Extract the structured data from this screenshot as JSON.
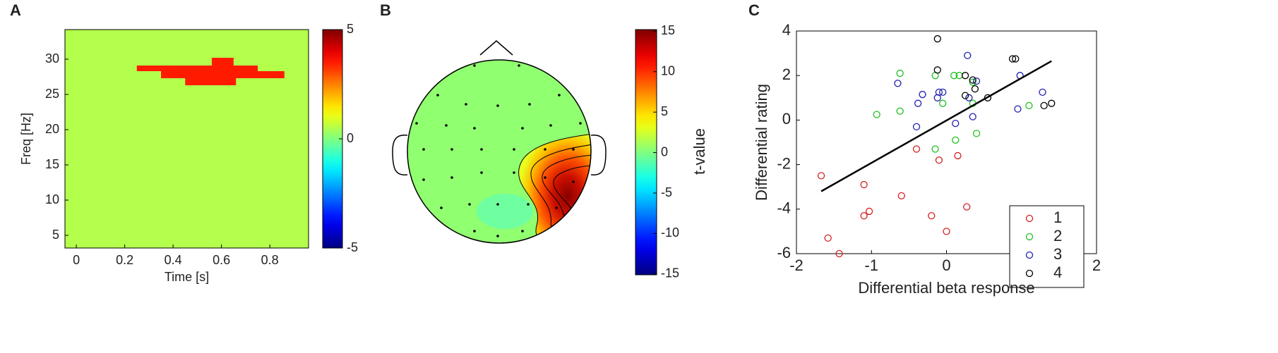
{
  "chart_data": [
    {
      "type": "heatmap",
      "panel": "A",
      "x_label": "Time [s]",
      "y_label": "Freq [Hz]",
      "xlim": [
        -0.047,
        0.96
      ],
      "xticks": [
        0,
        0.2,
        0.4,
        0.6,
        0.8
      ],
      "ylim": [
        3.2,
        34.2
      ],
      "yticks": [
        5,
        10,
        15,
        20,
        25,
        30
      ],
      "background_value": 0.5,
      "cells": [
        {
          "x": [
            0.56,
            0.65
          ],
          "y": [
            29.1,
            30.2
          ],
          "value": 3.5
        },
        {
          "x": [
            0.25,
            0.75
          ],
          "y": [
            28.3,
            29.1
          ],
          "value": 3.5
        },
        {
          "x": [
            0.35,
            0.86
          ],
          "y": [
            27.3,
            28.3
          ],
          "value": 3.5
        },
        {
          "x": [
            0.45,
            0.66
          ],
          "y": [
            26.3,
            27.3
          ],
          "value": 3.5
        }
      ],
      "colorbar": {
        "lim": [
          -5,
          5
        ],
        "ticks": [
          -5,
          0,
          5
        ]
      }
    },
    {
      "type": "topomap",
      "panel": "B",
      "colorbar_label": "t-value",
      "colorbar": {
        "lim": [
          -15.1,
          15.2
        ],
        "ticks": [
          -15,
          -10,
          -5,
          0,
          5,
          10,
          15
        ]
      }
    },
    {
      "type": "scatter",
      "panel": "C",
      "x_label": "Differential beta response",
      "y_label": "Differential rating",
      "xlim": [
        -2,
        2
      ],
      "xticks": [
        -2,
        -1,
        0,
        1,
        2
      ],
      "ylim": [
        -6,
        4
      ],
      "yticks": [
        -6,
        -4,
        -2,
        0,
        2,
        4
      ],
      "legend": "lower right",
      "series": [
        {
          "name": "1",
          "color": "#d62020",
          "x": [
            -1.67,
            -1.58,
            -1.43,
            -1.1,
            -1.1,
            -1.03,
            -0.6,
            -0.4,
            -0.2,
            -0.1,
            0.0,
            0.15,
            0.27
          ],
          "values": [
            -2.5,
            -5.3,
            -6.0,
            -2.9,
            -4.3,
            -4.1,
            -3.4,
            -1.3,
            -4.3,
            -1.8,
            -5.0,
            -1.6,
            -3.9
          ]
        },
        {
          "name": "2",
          "color": "#20c020",
          "x": [
            -0.93,
            -0.62,
            -0.62,
            -0.15,
            -0.15,
            -0.05,
            0.1,
            0.17,
            0.12,
            0.35,
            0.4,
            1.1,
            0.35
          ],
          "values": [
            0.25,
            2.1,
            0.4,
            2.0,
            -1.3,
            0.75,
            2.0,
            2.0,
            -0.9,
            0.75,
            -0.6,
            0.65,
            1.7
          ]
        },
        {
          "name": "3",
          "color": "#2020b0",
          "x": [
            -0.65,
            -0.4,
            -0.38,
            -0.32,
            -0.12,
            -0.1,
            -0.05,
            0.12,
            0.28,
            0.3,
            0.35,
            0.4,
            0.95,
            0.98,
            1.28
          ],
          "values": [
            1.65,
            -0.3,
            0.75,
            1.15,
            1.0,
            1.25,
            1.25,
            -0.15,
            2.9,
            1.0,
            0.15,
            1.75,
            0.5,
            2.0,
            1.25
          ]
        },
        {
          "name": "4",
          "color": "#000000",
          "x": [
            -0.12,
            -0.12,
            0.25,
            0.38,
            0.55,
            0.25,
            0.88,
            0.92,
            1.3,
            1.4,
            0.35
          ],
          "values": [
            3.65,
            2.25,
            2.0,
            1.4,
            1.0,
            1.1,
            2.75,
            2.75,
            0.65,
            0.75,
            1.8
          ]
        }
      ],
      "fit_line": {
        "x": [
          -1.67,
          1.4
        ],
        "values": [
          -3.2,
          2.65
        ]
      }
    }
  ]
}
